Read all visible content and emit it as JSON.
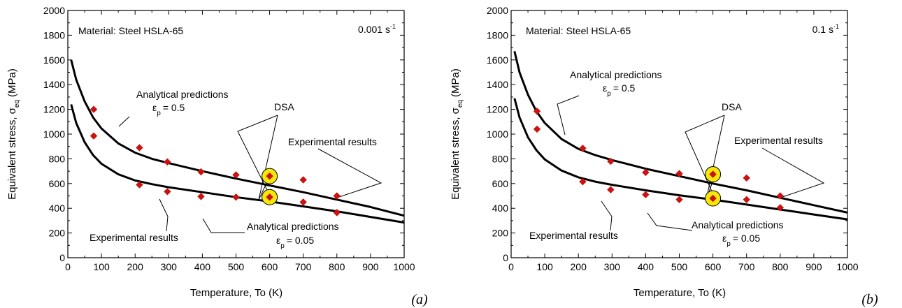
{
  "chart_data": [
    {
      "type": "scatter",
      "panel_label": "(a)",
      "xlabel": "Temperature, To (K)",
      "ylabel_main": "Equivalent stress, σ",
      "ylabel_sub": "eq",
      "ylabel_unit": "(MPa)",
      "xlim": [
        0,
        1000
      ],
      "ylim": [
        0,
        2000
      ],
      "xticks": [
        0,
        100,
        200,
        300,
        400,
        500,
        600,
        700,
        800,
        900,
        1000
      ],
      "yticks": [
        0,
        200,
        400,
        600,
        800,
        1000,
        1200,
        1400,
        1600,
        1800,
        2000
      ],
      "material_label": "Material: Steel HSLA-65",
      "rate_label": "0.001 s",
      "rate_exponent": "-1",
      "series": [
        {
          "label_text": "ε",
          "label_sub": "p",
          "label_val": "= 0.5",
          "x": [
            10,
            25,
            50,
            75,
            100,
            150,
            200,
            250,
            300,
            400,
            500,
            600,
            700,
            800,
            900,
            1000
          ],
          "y": [
            1600,
            1440,
            1265,
            1135,
            1045,
            925,
            850,
            800,
            765,
            700,
            640,
            585,
            530,
            470,
            410,
            340
          ]
        },
        {
          "label_text": "ε",
          "label_sub": "p",
          "label_val": "= 0.05",
          "x": [
            10,
            25,
            50,
            75,
            100,
            150,
            200,
            250,
            300,
            400,
            500,
            600,
            700,
            800,
            900,
            1000
          ],
          "y": [
            1240,
            1090,
            935,
            830,
            760,
            675,
            625,
            595,
            570,
            530,
            490,
            455,
            415,
            375,
            330,
            285
          ]
        }
      ],
      "experimental": {
        "x": [
          77,
          77,
          213,
          213,
          296,
          296,
          396,
          396,
          500,
          500,
          600,
          600,
          700,
          700,
          800,
          800
        ],
        "y": [
          1200,
          985,
          890,
          590,
          775,
          535,
          695,
          495,
          670,
          490,
          660,
          490,
          630,
          450,
          500,
          365
        ]
      },
      "dsa_points": {
        "x": [
          600,
          600
        ],
        "y": [
          660,
          490
        ]
      },
      "annotations": {
        "analytical_upper": "Analytical predictions",
        "analytical_lower": "Analytical predictions",
        "experimental_right": "Experimental results",
        "experimental_left": "Experimental results",
        "dsa": "DSA"
      },
      "colors": {
        "marker": "#cc1111",
        "highlight": "#f5e70a",
        "curve": "#000000"
      }
    },
    {
      "type": "scatter",
      "panel_label": "(b)",
      "xlabel": "Temperature, To (K)",
      "ylabel_main": "Equivalent stress, σ",
      "ylabel_sub": "eq",
      "ylabel_unit": "(MPa)",
      "xlim": [
        0,
        1000
      ],
      "ylim": [
        0,
        2000
      ],
      "xticks": [
        0,
        100,
        200,
        300,
        400,
        500,
        600,
        700,
        800,
        900,
        1000
      ],
      "yticks": [
        0,
        200,
        400,
        600,
        800,
        1000,
        1200,
        1400,
        1600,
        1800,
        2000
      ],
      "material_label": "Material: Steel HSLA-65",
      "rate_label": "0.1 s",
      "rate_exponent": "-1",
      "series": [
        {
          "label_text": "ε",
          "label_sub": "p",
          "label_val": "= 0.5",
          "x": [
            10,
            25,
            50,
            75,
            100,
            150,
            200,
            250,
            300,
            400,
            500,
            600,
            700,
            800,
            900,
            1000
          ],
          "y": [
            1670,
            1500,
            1320,
            1185,
            1090,
            960,
            880,
            830,
            790,
            720,
            660,
            600,
            545,
            485,
            425,
            365
          ]
        },
        {
          "label_text": "ε",
          "label_sub": "p",
          "label_val": "= 0.05",
          "x": [
            10,
            25,
            50,
            75,
            100,
            150,
            200,
            250,
            300,
            400,
            500,
            600,
            700,
            800,
            900,
            1000
          ],
          "y": [
            1290,
            1135,
            975,
            870,
            795,
            705,
            650,
            615,
            590,
            545,
            505,
            470,
            430,
            390,
            350,
            310
          ]
        }
      ],
      "experimental": {
        "x": [
          77,
          77,
          213,
          213,
          296,
          296,
          400,
          400,
          500,
          500,
          600,
          600,
          700,
          700,
          800,
          800
        ],
        "y": [
          1185,
          1040,
          885,
          615,
          780,
          550,
          690,
          510,
          680,
          470,
          675,
          480,
          645,
          470,
          500,
          405
        ]
      },
      "dsa_points": {
        "x": [
          600,
          600
        ],
        "y": [
          675,
          480
        ]
      },
      "annotations": {
        "analytical_upper": "Analytical predictions",
        "analytical_lower": "Analytical predictions",
        "experimental_right": "Experimental results",
        "experimental_left": "Experimental results",
        "dsa": "DSA"
      },
      "colors": {
        "marker": "#cc1111",
        "highlight": "#f5e70a",
        "curve": "#000000"
      }
    }
  ]
}
